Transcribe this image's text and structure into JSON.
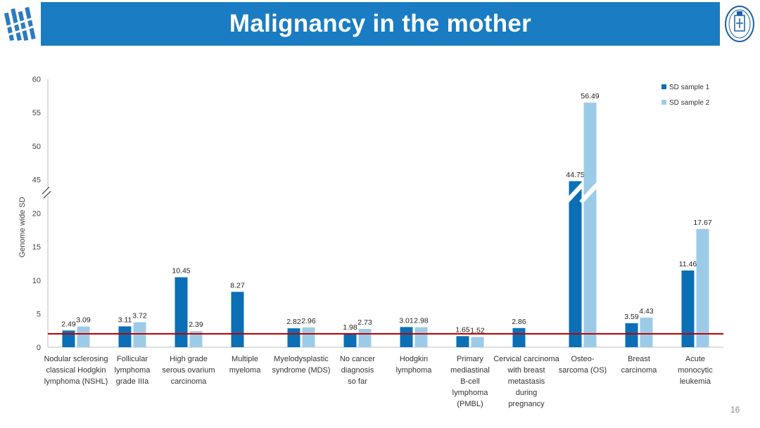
{
  "slide": {
    "title": "Malignancy in the mother",
    "page_number": "16"
  },
  "colors": {
    "header": "#1a7cc2",
    "series1": "#0a6fb5",
    "series2": "#9ccbe8",
    "threshold": "#c00000"
  },
  "icons": {
    "left_logo": "institution-logo",
    "right_logo": "university-seal"
  },
  "chart_data": {
    "type": "bar",
    "ylabel": "Genome wide SD",
    "axis_break": {
      "lower": [
        0,
        22
      ],
      "upper": [
        43,
        60
      ]
    },
    "yticks_lower": [
      0,
      5,
      10,
      15,
      20
    ],
    "yticks_upper": [
      45,
      50,
      55,
      60
    ],
    "threshold_value": 2,
    "legend_position": "top-right",
    "categories": [
      [
        "Nodular sclerosing",
        "classical Hodgkin",
        "lymphoma (NSHL)"
      ],
      [
        "Follicular",
        "lymphoma",
        "grade IIIa"
      ],
      [
        "High grade",
        "serous ovarium",
        "carcinoma"
      ],
      [
        "Multiple",
        "myeloma"
      ],
      [
        "Myelodysplastic",
        "syndrome (MDS)"
      ],
      [
        "No cancer",
        "diagnosis",
        "so far"
      ],
      [
        "Hodgkin",
        "lymphoma"
      ],
      [
        "Primary",
        "mediastinal",
        "B-cell",
        "lymphoma",
        "(PMBL)"
      ],
      [
        "Cervical carcinoma",
        "with breast",
        "metastasis",
        "during",
        "pregnancy"
      ],
      [
        "Osteo-",
        "sarcoma (OS)"
      ],
      [
        "Breast",
        "carcinoma"
      ],
      [
        "Acute",
        "monocytic",
        "leukemia"
      ]
    ],
    "series": [
      {
        "name": "SD sample 1",
        "values": [
          2.49,
          3.11,
          10.45,
          8.27,
          2.82,
          1.98,
          3.01,
          1.65,
          2.86,
          44.75,
          3.59,
          11.46
        ]
      },
      {
        "name": "SD sample 2",
        "values": [
          3.09,
          3.72,
          2.39,
          null,
          2.96,
          2.73,
          2.98,
          1.52,
          null,
          56.49,
          4.43,
          17.67
        ]
      }
    ]
  }
}
